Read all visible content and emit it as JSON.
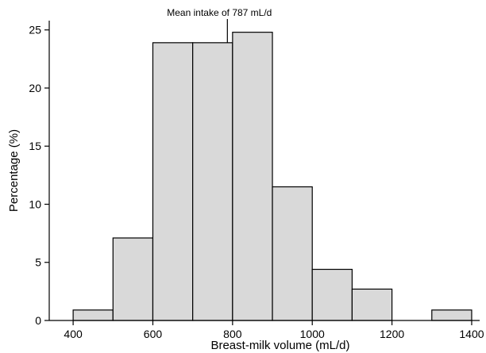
{
  "chart_data": {
    "type": "bar",
    "subtype": "histogram",
    "xlabel": "Breast-milk volume (mL/d)",
    "ylabel": "Percentage (%)",
    "xlim": [
      340,
      1420
    ],
    "ylim": [
      0,
      25.8
    ],
    "xticks": [
      400,
      600,
      800,
      1000,
      1200,
      1400
    ],
    "yticks": [
      0,
      5,
      10,
      15,
      20,
      25
    ],
    "bin_width": 100,
    "bins": [
      {
        "start": 400,
        "end": 500,
        "value": 0.9
      },
      {
        "start": 500,
        "end": 600,
        "value": 7.1
      },
      {
        "start": 600,
        "end": 700,
        "value": 23.9
      },
      {
        "start": 700,
        "end": 800,
        "value": 23.9
      },
      {
        "start": 800,
        "end": 900,
        "value": 24.8
      },
      {
        "start": 900,
        "end": 1000,
        "value": 11.5
      },
      {
        "start": 1000,
        "end": 1100,
        "value": 4.4
      },
      {
        "start": 1100,
        "end": 1200,
        "value": 2.7
      },
      {
        "start": 1300,
        "end": 1400,
        "value": 0.9
      }
    ],
    "annotation": {
      "text": "Mean intake of 787 mL/d",
      "x": 787
    },
    "grid": false,
    "bar_color": "#d9d9d9",
    "edge_color": "#000000"
  }
}
